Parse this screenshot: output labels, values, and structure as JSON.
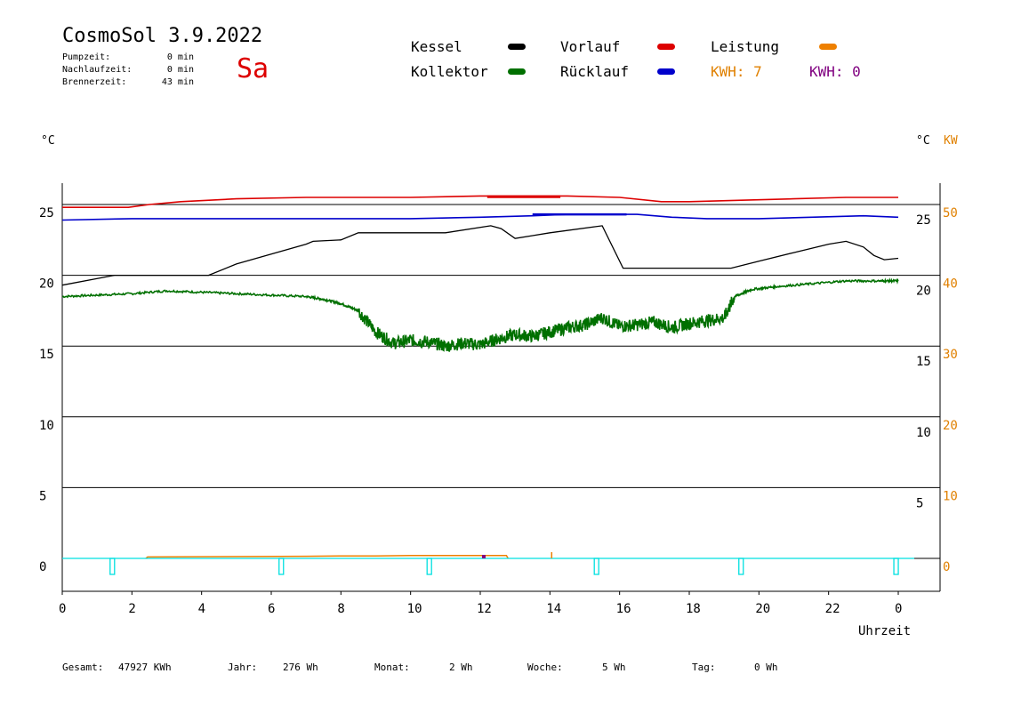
{
  "header": {
    "title": "CosmoSol 3.9.2022",
    "day": "Sa",
    "stats": [
      {
        "label": "Pumpzeit:",
        "value": "0 min"
      },
      {
        "label": "Nachlaufzeit:",
        "value": "0 min"
      },
      {
        "label": "Brennerzeit:",
        "value": "43 min"
      }
    ]
  },
  "legend": {
    "kessel": "Kessel",
    "vorlauf": "Vorlauf",
    "leistung": "Leistung",
    "kollektor": "Kollektor",
    "ruecklauf": "Rücklauf",
    "kwh1": "KWH: 7",
    "kwh2": "KWH: 0"
  },
  "colors": {
    "kessel": "#000000",
    "vorlauf": "#dd0000",
    "leistung": "#ee8000",
    "kollektor": "#007000",
    "ruecklauf": "#0000cc",
    "kwh2": "#800080",
    "pump": "#00e0e0",
    "orange_text": "#e08000"
  },
  "units": {
    "left": "°C",
    "right1": "°C",
    "right2": "KW"
  },
  "footer": {
    "gesamt_label": "Gesamt:",
    "gesamt_value": "47927 KWh",
    "jahr_label": "Jahr:",
    "jahr_value": "276 Wh",
    "monat_label": "Monat:",
    "monat_value": "2 Wh",
    "woche_label": "Woche:",
    "woche_value": "5 Wh",
    "tag_label": "Tag:",
    "tag_value": "0 Wh"
  },
  "chart_data": {
    "type": "line",
    "xlabel": "Uhrzeit",
    "xlim": [
      0,
      24
    ],
    "x_ticks": [
      "0",
      "2",
      "4",
      "6",
      "8",
      "10",
      "12",
      "14",
      "16",
      "18",
      "20",
      "22",
      "0"
    ],
    "y_left_ticks": [
      "25",
      "20",
      "15",
      "10",
      "5",
      "0"
    ],
    "y_right_inner_ticks": [
      "25",
      "20",
      "15",
      "10",
      "5"
    ],
    "y_right_outer_ticks": [
      "50",
      "40",
      "30",
      "20",
      "10",
      "0"
    ],
    "ylim": [
      -2.2,
      27
    ],
    "series": [
      {
        "name": "Vorlauf",
        "key": "vorlauf",
        "x": [
          0,
          1.9,
          2.5,
          3.4,
          5,
          7,
          10,
          12,
          14.5,
          16,
          17.2,
          18,
          19.5,
          21,
          22.5,
          24
        ],
        "y": [
          24.8,
          24.8,
          25.0,
          25.2,
          25.4,
          25.5,
          25.5,
          25.6,
          25.6,
          25.5,
          25.2,
          25.2,
          25.3,
          25.4,
          25.5,
          25.5
        ]
      },
      {
        "name": "Rücklauf",
        "key": "ruecklauf",
        "x": [
          0,
          2,
          4,
          6,
          8,
          10,
          12,
          13.5,
          14.5,
          15.5,
          16.5,
          17.5,
          18.5,
          20,
          21.5,
          23,
          24
        ],
        "y": [
          23.9,
          24.0,
          24.0,
          24.0,
          24.0,
          24.0,
          24.1,
          24.2,
          24.3,
          24.3,
          24.3,
          24.1,
          24.0,
          24.0,
          24.1,
          24.2,
          24.1
        ]
      },
      {
        "name": "Kessel",
        "key": "kessel",
        "x": [
          0,
          1.5,
          2,
          4.2,
          5,
          6,
          7,
          7.2,
          8,
          8.5,
          11,
          12.3,
          12.6,
          13,
          13.5,
          14,
          15.5,
          16.1,
          16.4,
          19.2,
          20,
          21,
          22,
          22.5,
          23,
          23.3,
          23.6,
          24
        ],
        "y": [
          19.3,
          20.0,
          20.0,
          20.0,
          20.8,
          21.5,
          22.2,
          22.4,
          22.5,
          23.0,
          23.0,
          23.5,
          23.3,
          22.6,
          22.8,
          23.0,
          23.5,
          20.5,
          20.5,
          20.5,
          21.0,
          21.6,
          22.2,
          22.4,
          22.0,
          21.4,
          21.1,
          21.2
        ]
      },
      {
        "name": "Kollektor",
        "key": "kollektor",
        "x": [
          0,
          1,
          2,
          3,
          4,
          5,
          6,
          7,
          7.5,
          8,
          8.5,
          9,
          9.5,
          10,
          10.5,
          11,
          11.5,
          12,
          12.5,
          13,
          13.5,
          14,
          14.5,
          15,
          15.5,
          16,
          16.5,
          17,
          17.5,
          18,
          18.5,
          19,
          19.3,
          19.8,
          20.5,
          21.5,
          22.5,
          23.5,
          24
        ],
        "y": [
          18.5,
          18.6,
          18.7,
          18.9,
          18.8,
          18.7,
          18.6,
          18.5,
          18.3,
          18.0,
          17.5,
          16.0,
          15.2,
          15.4,
          15.3,
          15.0,
          15.2,
          15.1,
          15.5,
          15.8,
          15.7,
          16.0,
          16.3,
          16.5,
          17.0,
          16.4,
          16.5,
          16.7,
          16.3,
          16.6,
          16.8,
          17.0,
          18.5,
          19.0,
          19.2,
          19.4,
          19.6,
          19.6,
          19.6
        ]
      },
      {
        "name": "Leistung",
        "key": "leistung",
        "axis": "right_kw",
        "x": [
          2.4,
          2.45,
          7,
          8,
          9,
          10,
          12.75,
          12.8
        ],
        "y": [
          0,
          0.2,
          0.3,
          0.35,
          0.35,
          0.4,
          0.4,
          0
        ]
      }
    ],
    "pump_markers": [
      1.45,
      6.3,
      10.55,
      15.35,
      19.5,
      23.95
    ]
  }
}
